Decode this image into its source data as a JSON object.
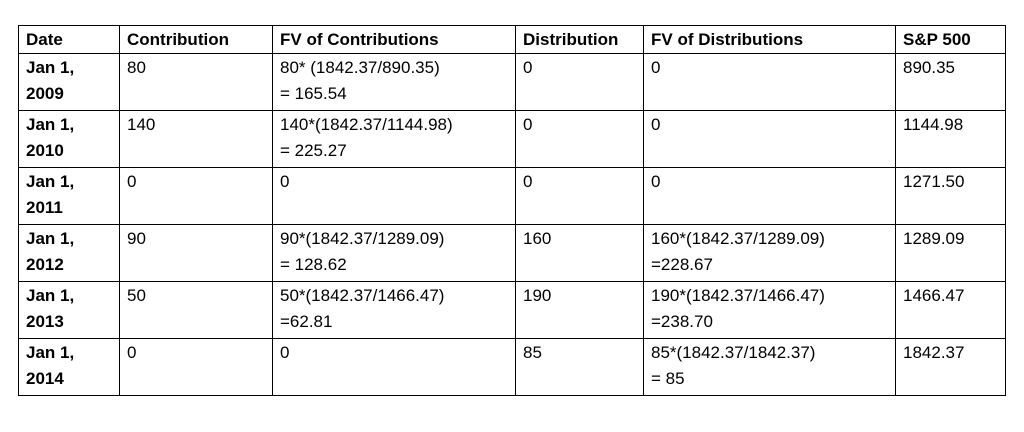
{
  "table": {
    "header": [
      "Date",
      "Contribution",
      "FV of Contributions",
      "Distribution",
      "FV of Distributions",
      "S&P 500"
    ],
    "rows": [
      [
        [
          "Jan 1,",
          "2009"
        ],
        [
          "80"
        ],
        [
          "80* (1842.37/890.35)",
          "= 165.54"
        ],
        [
          "0"
        ],
        [
          "0"
        ],
        [
          "890.35"
        ]
      ],
      [
        [
          "Jan 1,",
          "2010"
        ],
        [
          "140"
        ],
        [
          "140*(1842.37/1144.98)",
          "= 225.27"
        ],
        [
          "0"
        ],
        [
          "0"
        ],
        [
          "1144.98"
        ]
      ],
      [
        [
          "Jan 1,",
          "2011"
        ],
        [
          "0"
        ],
        [
          "0"
        ],
        [
          "0"
        ],
        [
          "0"
        ],
        [
          "1271.50"
        ]
      ],
      [
        [
          "Jan 1,",
          "2012"
        ],
        [
          "90"
        ],
        [
          "90*(1842.37/1289.09)",
          "= 128.62"
        ],
        [
          "160"
        ],
        [
          "160*(1842.37/1289.09)",
          "=228.67"
        ],
        [
          "1289.09"
        ]
      ],
      [
        [
          "Jan 1,",
          "2013"
        ],
        [
          "50"
        ],
        [
          "50*(1842.37/1466.47)",
          "=62.81"
        ],
        [
          "190"
        ],
        [
          "190*(1842.37/1466.47)",
          "=238.70"
        ],
        [
          "1466.47"
        ]
      ],
      [
        [
          "Jan 1,",
          "2014"
        ],
        [
          "0"
        ],
        [
          "0"
        ],
        [
          "85"
        ],
        [
          "85*(1842.37/1842.37)",
          "= 85"
        ],
        [
          "1842.37"
        ]
      ]
    ]
  }
}
